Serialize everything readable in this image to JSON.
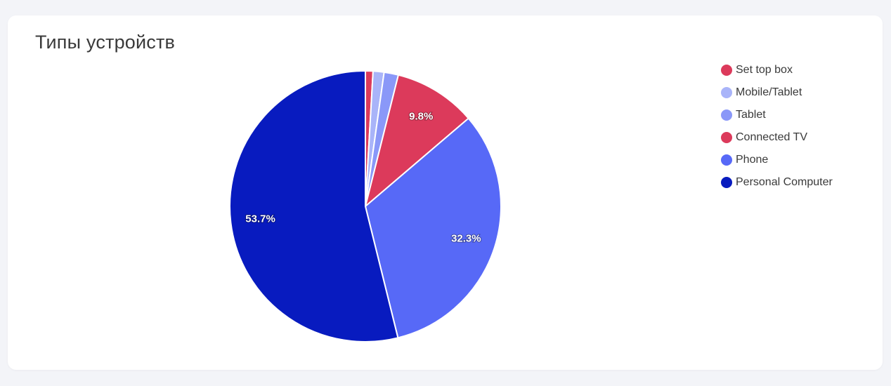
{
  "page": {
    "title": "Типы устройств"
  },
  "chart_data": {
    "type": "pie",
    "title": "Типы устройств",
    "legend_position": "right",
    "slices": [
      {
        "name": "Set top box",
        "value": 0.9,
        "color": "#dc3a5b",
        "label": ""
      },
      {
        "name": "Mobile/Tablet",
        "value": 1.3,
        "color": "#a9b4f9",
        "label": ""
      },
      {
        "name": "Tablet",
        "value": 1.7,
        "color": "#8a98f8",
        "label": ""
      },
      {
        "name": "Connected TV",
        "value": 9.8,
        "color": "#dc3a5b",
        "label": "9.8%"
      },
      {
        "name": "Phone",
        "value": 32.3,
        "color": "#5769f7",
        "label": "32.3%"
      },
      {
        "name": "Personal Computer",
        "value": 53.7,
        "color": "#081bbf",
        "label": "53.7%"
      }
    ]
  }
}
